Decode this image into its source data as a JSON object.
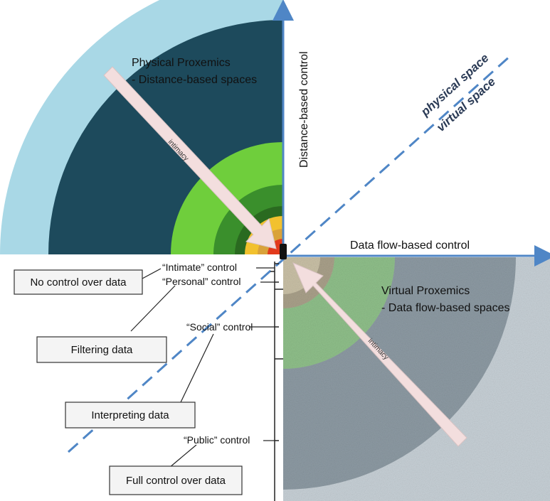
{
  "physical_title_1": "Physical Proxemics",
  "physical_title_2": "- Distance-based spaces",
  "virtual_title_1": "Virtual Proxemics",
  "virtual_title_2": "- Data flow-based spaces",
  "axis_vertical": "Distance-based control",
  "axis_horizontal": "Data flow-based control",
  "diag_physical": "physical space",
  "diag_virtual": "virtual space",
  "arrow_upper": "intimacy",
  "arrow_lower": "intimacy",
  "controls": {
    "intimate": "“Intimate” control",
    "personal": "“Personal” control",
    "social": "“Social” control",
    "public": "“Public” control"
  },
  "boxes": {
    "no_control": "No control over data",
    "filtering": "Filtering data",
    "interpreting": "Interpreting data",
    "full_control": "Full control over data"
  },
  "colors": {
    "outer_light_blue": "#a9d8e6",
    "dark_teal": "#1d4a5c",
    "bright_green": "#6fce3c",
    "mid_green": "#3a8f2c",
    "dark_green": "#2a6a20",
    "yellow": "#f2c12e",
    "red": "#e23a1c",
    "axis_blue": "#4f86c6",
    "arrow_pink": "#f3dede"
  }
}
